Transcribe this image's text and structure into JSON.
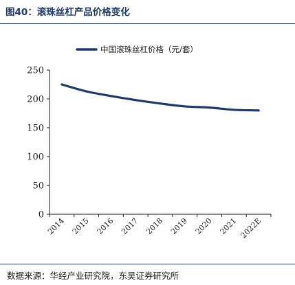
{
  "header": {
    "figure_title": "图40：滚珠丝杠产品价格变化"
  },
  "footer": {
    "source": "数据来源：华经产业研究院，东吴证券研究所"
  },
  "colors": {
    "title": "#1f3a68",
    "series_line": "#1f3a68",
    "axis": "#1a1a1a",
    "rule": "#1f3a68"
  },
  "chart_data": {
    "type": "line",
    "title": "",
    "xlabel": "",
    "ylabel": "",
    "categories": [
      "2014",
      "2015",
      "2016",
      "2017",
      "2018",
      "2019",
      "2020",
      "2021",
      "2022E"
    ],
    "series": [
      {
        "name": "中国滚珠丝杠价格（元/套）",
        "values": [
          225,
          213,
          205,
          198,
          192,
          187,
          185,
          181,
          180
        ]
      }
    ],
    "ylim": [
      0,
      250
    ],
    "yticks": [
      0,
      50,
      100,
      150,
      200,
      250
    ],
    "grid": false,
    "legend": "top-center"
  }
}
